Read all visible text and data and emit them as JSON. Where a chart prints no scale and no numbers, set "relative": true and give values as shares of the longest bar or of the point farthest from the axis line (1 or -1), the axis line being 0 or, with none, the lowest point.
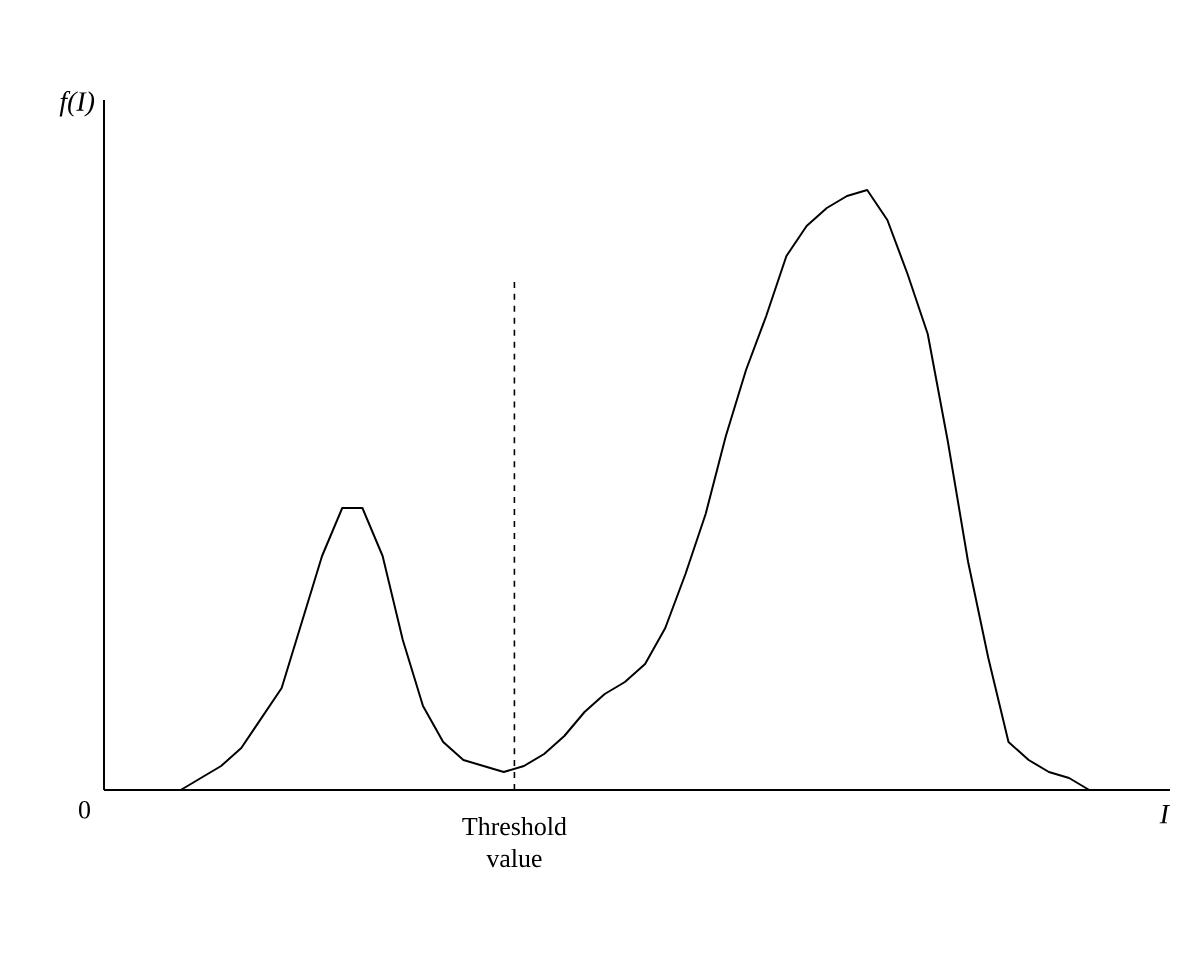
{
  "chart_data": {
    "type": "line",
    "relative": true,
    "xlabel": "I",
    "ylabel": "f(I)",
    "color": "#000000",
    "line_style": "solid",
    "categories": [
      null,
      null,
      null,
      null,
      null,
      null,
      null,
      null,
      null,
      null,
      null,
      null,
      null,
      null,
      null,
      null,
      null,
      null,
      null,
      null,
      null,
      null,
      null,
      null,
      null,
      null,
      null,
      null,
      null,
      null,
      null,
      null,
      null,
      null,
      null,
      null,
      null,
      null,
      null,
      null,
      null,
      null,
      null,
      null,
      null,
      null
    ],
    "values": [
      0,
      0.02,
      0.04,
      0.07,
      0.12,
      0.17,
      0.28,
      0.39,
      0.47,
      0.47,
      0.39,
      0.25,
      0.14,
      0.08,
      0.05,
      0.04,
      0.03,
      0.04,
      0.06,
      0.09,
      0.13,
      0.16,
      0.18,
      0.21,
      0.27,
      0.36,
      0.46,
      0.59,
      0.7,
      0.79,
      0.89,
      0.94,
      0.97,
      0.99,
      1.0,
      0.95,
      0.86,
      0.76,
      0.58,
      0.38,
      0.22,
      0.08,
      0.05,
      0.03,
      0.02,
      0.0
    ],
    "annotations": [
      "0",
      "Threshold value"
    ]
  }
}
